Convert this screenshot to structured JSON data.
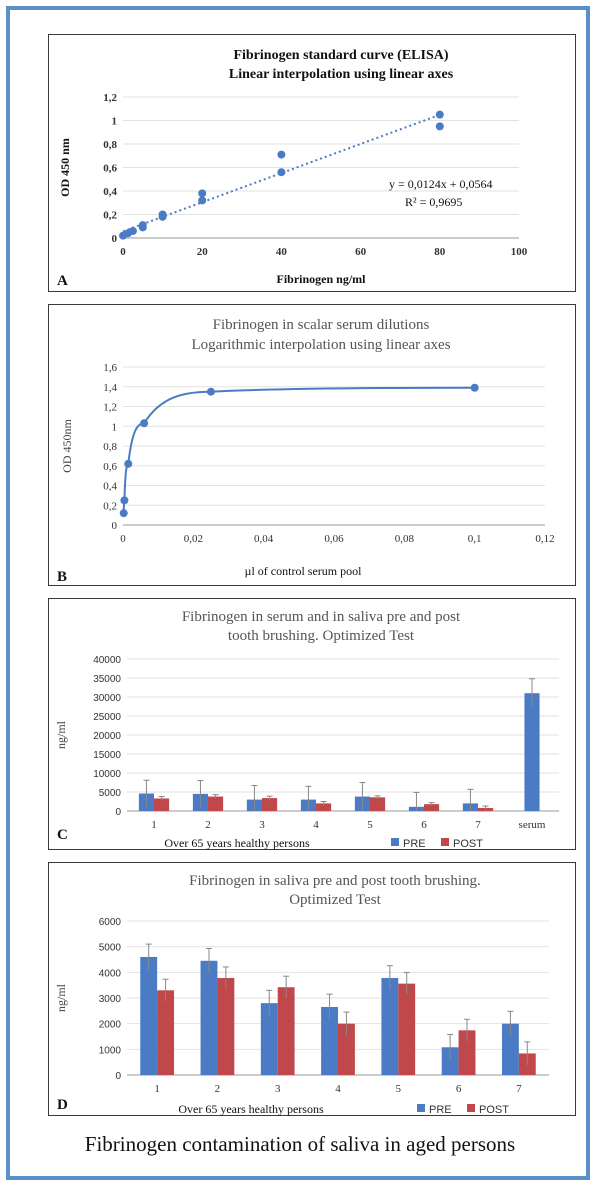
{
  "caption": "Fibrinogen contamination of saliva in aged persons",
  "colors": {
    "frame": "#5b8fc9",
    "series_blue": "#4a7bc4",
    "series_red": "#c0474a",
    "grid": "#e2e2e2",
    "axis_text": "#404040"
  },
  "chart_data": [
    {
      "panel": "A",
      "type": "scatter",
      "title": "Fibrinogen  standard curve (ELISA)",
      "subtitle": "Linear interpolation  using linear axes",
      "xlabel": "Fibrinogen  ng/ml",
      "ylabel": "OD 450 nm",
      "xlim": [
        0,
        100
      ],
      "ylim": [
        0,
        1.2
      ],
      "xticks": [
        0,
        20,
        40,
        60,
        80,
        100
      ],
      "yticks": [
        0,
        0.2,
        0.4,
        0.6,
        0.8,
        1,
        1.2
      ],
      "ytick_labels": [
        "0",
        "0,2",
        "0,4",
        "0,6",
        "0,8",
        "1",
        "1,2"
      ],
      "grid": "horizontal",
      "points": [
        {
          "x": 0,
          "y": 0.02
        },
        {
          "x": 1.25,
          "y": 0.04
        },
        {
          "x": 2.5,
          "y": 0.06
        },
        {
          "x": 5,
          "y": 0.09
        },
        {
          "x": 5,
          "y": 0.11
        },
        {
          "x": 10,
          "y": 0.18
        },
        {
          "x": 10,
          "y": 0.2
        },
        {
          "x": 20,
          "y": 0.32
        },
        {
          "x": 20,
          "y": 0.38
        },
        {
          "x": 40,
          "y": 0.56
        },
        {
          "x": 40,
          "y": 0.71
        },
        {
          "x": 80,
          "y": 0.95
        },
        {
          "x": 80,
          "y": 1.05
        }
      ],
      "trendline": {
        "type": "linear",
        "slope": 0.0124,
        "intercept": 0.0564,
        "x_range": [
          0,
          80
        ]
      },
      "equation": "y = 0,0124x   + 0,0564",
      "r2": "R² = 0,9695"
    },
    {
      "panel": "B",
      "type": "scatter",
      "title": "Fibrinogen  in scalar serum dilutions",
      "subtitle": "Logarithmic interpolation  using linear axes",
      "xlabel": "µl of control serum pool",
      "ylabel": "OD 450nm",
      "xlim": [
        0,
        0.12
      ],
      "ylim": [
        0,
        1.6
      ],
      "xticks": [
        0,
        0.02,
        0.04,
        0.06,
        0.08,
        0.1,
        0.12
      ],
      "xtick_labels": [
        "0",
        "0,02",
        "0,04",
        "0,06",
        "0,08",
        "0,1",
        "0,12"
      ],
      "yticks": [
        0,
        0.2,
        0.4,
        0.6,
        0.8,
        1,
        1.2,
        1.4,
        1.6
      ],
      "ytick_labels": [
        "0",
        "0,2",
        "0,4",
        "0,6",
        "0,8",
        "1",
        "1,2",
        "1,4",
        "1,6"
      ],
      "grid": "horizontal",
      "points": [
        {
          "x": 0.0002,
          "y": 0.12
        },
        {
          "x": 0.0004,
          "y": 0.25
        },
        {
          "x": 0.0015,
          "y": 0.62
        },
        {
          "x": 0.006,
          "y": 1.03
        },
        {
          "x": 0.025,
          "y": 1.35
        },
        {
          "x": 0.1,
          "y": 1.39
        }
      ]
    },
    {
      "panel": "C",
      "type": "bar",
      "title": "Fibrinogen  in serum and in saliva pre and post",
      "subtitle": "tooth brushing.  Optimized  Test",
      "xlabel": "Over  65 years healthy persons",
      "ylabel": "ng/ml",
      "ylim": [
        0,
        40000
      ],
      "yticks": [
        0,
        5000,
        10000,
        15000,
        20000,
        25000,
        30000,
        35000,
        40000
      ],
      "grid": "horizontal",
      "legend_position": "bottom-right",
      "categories": [
        "1",
        "2",
        "3",
        "4",
        "5",
        "6",
        "7",
        "serum"
      ],
      "series": [
        {
          "name": "PRE",
          "color": "#4a7bc4",
          "values": [
            4600,
            4500,
            3000,
            3000,
            3800,
            1100,
            2000,
            31000
          ],
          "errors": [
            3500,
            3500,
            3700,
            3500,
            3700,
            3800,
            3700,
            3800
          ]
        },
        {
          "name": "POST",
          "color": "#c0474a",
          "values": [
            3300,
            3800,
            3400,
            2000,
            3600,
            1800,
            800,
            null
          ],
          "errors": [
            500,
            500,
            500,
            500,
            400,
            400,
            500,
            null
          ]
        }
      ]
    },
    {
      "panel": "D",
      "type": "bar",
      "title": "Fibrinogen  in saliva pre and post tooth brushing.",
      "subtitle": "Optimized  Test",
      "xlabel": "Over  65 years healthy persons",
      "ylabel": "ng/ml",
      "ylim": [
        0,
        6000
      ],
      "yticks": [
        0,
        1000,
        2000,
        3000,
        4000,
        5000,
        6000
      ],
      "grid": "horizontal",
      "legend_position": "bottom-right",
      "categories": [
        "1",
        "2",
        "3",
        "4",
        "5",
        "6",
        "7"
      ],
      "series": [
        {
          "name": "PRE",
          "color": "#4a7bc4",
          "values": [
            4600,
            4450,
            2800,
            2650,
            3780,
            1080,
            2000
          ],
          "errors": [
            500,
            480,
            500,
            500,
            480,
            500,
            480
          ]
        },
        {
          "name": "POST",
          "color": "#c0474a",
          "values": [
            3300,
            3780,
            3420,
            2000,
            3560,
            1740,
            840
          ],
          "errors": [
            430,
            430,
            430,
            450,
            430,
            430,
            450
          ]
        }
      ]
    }
  ]
}
